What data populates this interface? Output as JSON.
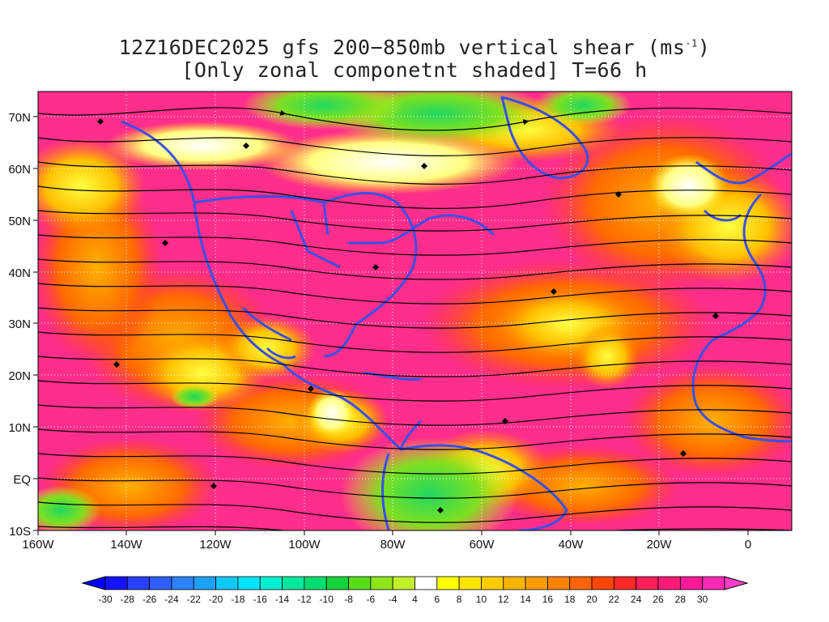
{
  "title": {
    "line1_a": "12Z16DEC2025 gfs 200−850mb vertical shear (ms",
    "line1_sup": "-1",
    "line1_b": ")",
    "line2": "[Only zonal componetnt shaded] T=66 h"
  },
  "map": {
    "lat_labels": [
      "70N",
      "60N",
      "50N",
      "40N",
      "30N",
      "20N",
      "10N",
      "EQ",
      "10S"
    ],
    "lon_labels": [
      "160W",
      "140W",
      "120W",
      "100W",
      "80W",
      "60W",
      "40W",
      "20W",
      "0"
    ],
    "lat_range": [
      -10,
      75
    ],
    "lon_range": [
      -160,
      10
    ],
    "coastline_color": "#3b4fe8",
    "streamline_color": "#000000",
    "gridlines": "dotted white"
  },
  "colorbar": {
    "labels": [
      "-30",
      "-28",
      "-26",
      "-24",
      "-22",
      "-20",
      "-18",
      "-16",
      "-14",
      "-12",
      "-10",
      "-8",
      "-6",
      "-4",
      "4",
      "6",
      "8",
      "10",
      "12",
      "14",
      "16",
      "18",
      "20",
      "22",
      "24",
      "26",
      "28",
      "30"
    ],
    "colors": [
      "#1414ff",
      "#2a40ff",
      "#2f60ff",
      "#2c82ff",
      "#1ea0ff",
      "#10c8ff",
      "#00e5ff",
      "#00f0d0",
      "#00e89a",
      "#00dc70",
      "#14d23c",
      "#58dc18",
      "#90e41c",
      "#c2ee2a",
      "#ffffff",
      "#ffff00",
      "#ffe400",
      "#ffcc00",
      "#ffb400",
      "#ff9c00",
      "#ff8200",
      "#ff6400",
      "#ff4600",
      "#ff2828",
      "#ff1e5a",
      "#ff1a78",
      "#ff1a9a",
      "#ff28b4"
    ],
    "under_color": "#0000ff",
    "over_color": "#ff3cc8"
  }
}
